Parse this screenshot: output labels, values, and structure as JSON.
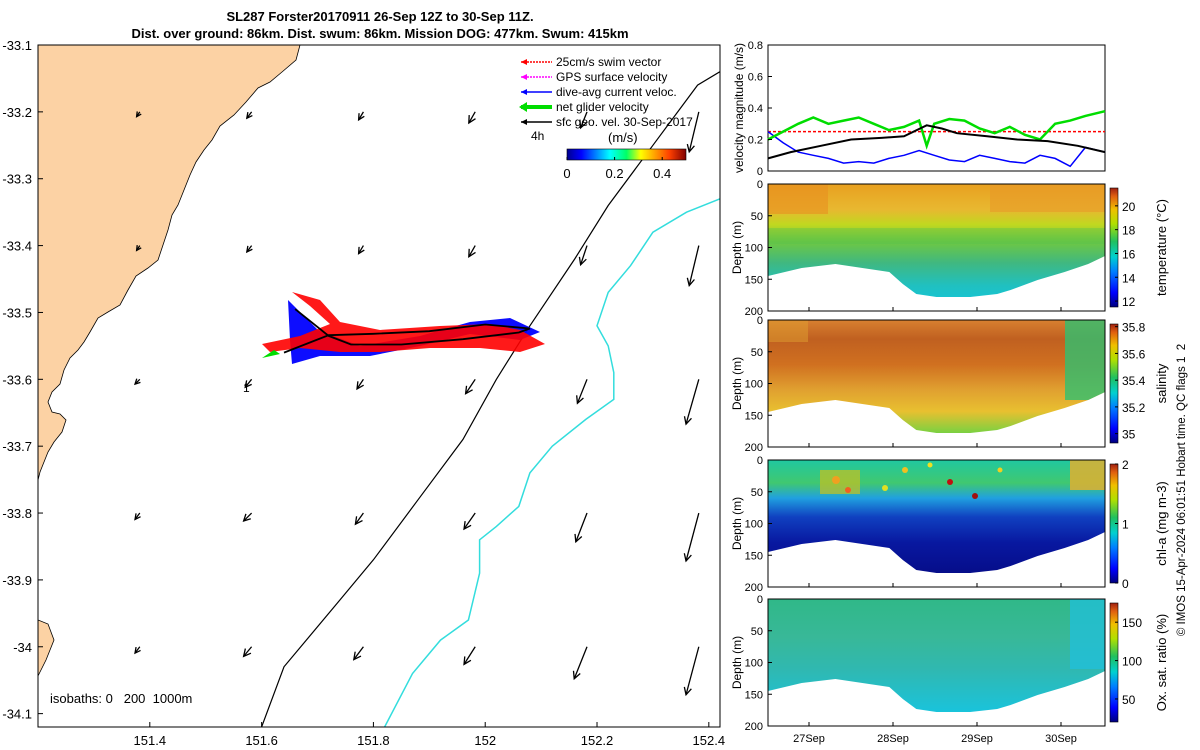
{
  "title": {
    "line1": "SL287 Forster20170911 26-Sep 12Z to 30-Sep 11Z.",
    "line2": "Dist. over ground: 86km. Dist. swum: 86km. Mission DOG: 477km. Swum: 415km"
  },
  "colors": {
    "land": "#FCD2A4",
    "swim_vector": "#FF0000",
    "gps_velocity": "#FF00FF",
    "current_vector": "#0000FF",
    "net_velocity": "#00DD00",
    "geo_velocity": "#000000",
    "isobath_200": "#000000",
    "isobath_1000": "#33DDDD"
  },
  "chart_data": [
    {
      "type": "map",
      "name": "glider-track-map",
      "xlim": [
        151.2,
        152.42
      ],
      "ylim": [
        -34.12,
        -33.1
      ],
      "x_ticks": [
        151.4,
        151.6,
        151.8,
        152,
        152.2,
        152.4
      ],
      "x_tick_labels": [
        "151.4",
        "151.6",
        "151.8",
        "152",
        "152.2",
        "152.4"
      ],
      "y_ticks": [
        -33.1,
        -33.2,
        -33.3,
        -33.4,
        -33.5,
        -33.6,
        -33.7,
        -33.8,
        -33.9,
        -34,
        -34.1
      ],
      "y_tick_labels": [
        "-33.1",
        "-33.2",
        "-33.3",
        "-33.4",
        "-33.5",
        "-33.6",
        "-33.7",
        "-33.8",
        "-33.9",
        "-34",
        "-34.1"
      ],
      "legend": {
        "position": "top-right",
        "entries": [
          {
            "label": "25cm/s swim vector",
            "color": "#FF0000"
          },
          {
            "label": "GPS surface velocity",
            "color": "#FF00FF"
          },
          {
            "label": "dive-avg current veloc.",
            "color": "#0000FF"
          },
          {
            "label": "net glider velocity",
            "color": "#00DD00"
          },
          {
            "label": "sfc geo. vel. 30-Sep-2017",
            "color": "#000000"
          }
        ],
        "subtitle_left": "4h",
        "colorbar_unit": "(m/s)",
        "colorbar_ticks": [
          0,
          0.2,
          0.4
        ],
        "colorbar_range": [
          0,
          0.5
        ]
      },
      "isobaths_label": "isobaths: 0   200  1000m",
      "marker_label": "1",
      "track": [
        {
          "lon": 151.64,
          "lat": -33.56
        },
        {
          "lon": 151.72,
          "lat": -33.534
        },
        {
          "lon": 151.8,
          "lat": -33.532
        },
        {
          "lon": 151.9,
          "lat": -33.528
        },
        {
          "lon": 152.0,
          "lat": -33.518
        },
        {
          "lon": 152.08,
          "lat": -33.524
        },
        {
          "lon": 152.06,
          "lat": -33.53
        },
        {
          "lon": 151.96,
          "lat": -33.54
        },
        {
          "lon": 151.85,
          "lat": -33.548
        },
        {
          "lon": 151.76,
          "lat": -33.548
        },
        {
          "lon": 151.72,
          "lat": -33.535
        },
        {
          "lon": 151.66,
          "lat": -33.495
        }
      ],
      "isobath_200": [
        {
          "lon": 151.6,
          "lat": -34.12
        },
        {
          "lon": 151.64,
          "lat": -34.03
        },
        {
          "lon": 151.74,
          "lat": -33.93
        },
        {
          "lon": 151.8,
          "lat": -33.87
        },
        {
          "lon": 151.88,
          "lat": -33.78
        },
        {
          "lon": 151.96,
          "lat": -33.69
        },
        {
          "lon": 152.02,
          "lat": -33.6
        },
        {
          "lon": 152.08,
          "lat": -33.52
        },
        {
          "lon": 152.16,
          "lat": -33.42
        },
        {
          "lon": 152.22,
          "lat": -33.34
        },
        {
          "lon": 152.3,
          "lat": -33.25
        },
        {
          "lon": 152.38,
          "lat": -33.16
        },
        {
          "lon": 152.42,
          "lat": -33.14
        }
      ],
      "isobath_1000": [
        {
          "lon": 151.82,
          "lat": -34.12
        },
        {
          "lon": 151.87,
          "lat": -34.04
        },
        {
          "lon": 151.92,
          "lat": -33.99
        },
        {
          "lon": 151.97,
          "lat": -33.96
        },
        {
          "lon": 151.99,
          "lat": -33.89
        },
        {
          "lon": 151.99,
          "lat": -33.84
        },
        {
          "lon": 152.02,
          "lat": -33.82
        },
        {
          "lon": 152.06,
          "lat": -33.79
        },
        {
          "lon": 152.08,
          "lat": -33.74
        },
        {
          "lon": 152.12,
          "lat": -33.7
        },
        {
          "lon": 152.18,
          "lat": -33.66
        },
        {
          "lon": 152.23,
          "lat": -33.63
        },
        {
          "lon": 152.23,
          "lat": -33.59
        },
        {
          "lon": 152.22,
          "lat": -33.55
        },
        {
          "lon": 152.2,
          "lat": -33.52
        },
        {
          "lon": 152.22,
          "lat": -33.47
        },
        {
          "lon": 152.26,
          "lat": -33.43
        },
        {
          "lon": 152.3,
          "lat": -33.38
        },
        {
          "lon": 152.36,
          "lat": -33.35
        },
        {
          "lon": 152.42,
          "lat": -33.33
        }
      ],
      "geo_vectors": {
        "lons": [
          151.4,
          151.6,
          151.8,
          152.0,
          152.2,
          152.4
        ],
        "lats": [
          -33.2,
          -33.4,
          -33.6,
          -33.8,
          -34.0
        ],
        "u": [
          [
            -0.02,
            -0.03,
            -0.03,
            -0.04,
            -0.04,
            -0.06
          ],
          [
            -0.02,
            -0.03,
            -0.03,
            -0.04,
            -0.04,
            -0.06
          ],
          [
            -0.03,
            -0.04,
            -0.04,
            -0.06,
            -0.06,
            -0.08
          ],
          [
            -0.03,
            -0.05,
            -0.05,
            -0.07,
            -0.07,
            -0.08
          ],
          [
            -0.03,
            -0.05,
            -0.06,
            -0.07,
            -0.08,
            -0.08
          ]
        ],
        "v": [
          [
            -0.03,
            -0.04,
            -0.05,
            -0.07,
            -0.1,
            -0.25
          ],
          [
            -0.03,
            -0.04,
            -0.05,
            -0.07,
            -0.12,
            -0.25
          ],
          [
            -0.03,
            -0.05,
            -0.06,
            -0.09,
            -0.15,
            -0.28
          ],
          [
            -0.04,
            -0.05,
            -0.07,
            -0.1,
            -0.18,
            -0.3
          ],
          [
            -0.04,
            -0.06,
            -0.08,
            -0.11,
            -0.2,
            -0.3
          ]
        ]
      }
    },
    {
      "type": "line",
      "name": "velocity-magnitude",
      "ylabel": "velocity magnitude (m/s)",
      "ylim": [
        0,
        0.8
      ],
      "y_ticks": [
        0,
        0.2,
        0.4,
        0.6,
        0.8
      ],
      "y_tick_labels": [
        "0",
        "0.2",
        "0.4",
        "0.6",
        "0.8"
      ],
      "xlim": [
        26.5,
        30.96
      ],
      "series": [
        {
          "color": "#FF0000",
          "x": [
            26.5,
            30.96
          ],
          "y": [
            0.25,
            0.25
          ]
        },
        {
          "color": "#0000FF",
          "x": [
            26.5,
            26.7,
            26.9,
            27.1,
            27.3,
            27.5,
            27.7,
            27.9,
            28.1,
            28.3,
            28.5,
            28.7,
            28.9,
            29.1,
            29.3,
            29.5,
            29.7,
            29.9,
            30.1,
            30.3,
            30.5,
            30.7,
            30.96
          ],
          "y": [
            0.25,
            0.18,
            0.12,
            0.1,
            0.08,
            0.05,
            0.06,
            0.05,
            0.08,
            0.1,
            0.13,
            0.1,
            0.07,
            0.06,
            0.1,
            0.08,
            0.06,
            0.05,
            0.1,
            0.08,
            0.03,
            0.15,
            0.12
          ]
        },
        {
          "color": "#00DD00",
          "x": [
            26.5,
            26.7,
            26.9,
            27.1,
            27.3,
            27.5,
            27.7,
            27.9,
            28.1,
            28.3,
            28.5,
            28.6,
            28.7,
            28.9,
            29.1,
            29.3,
            29.5,
            29.7,
            29.9,
            30.1,
            30.3,
            30.5,
            30.7,
            30.96
          ],
          "y": [
            0.2,
            0.25,
            0.3,
            0.34,
            0.3,
            0.32,
            0.34,
            0.3,
            0.26,
            0.28,
            0.32,
            0.16,
            0.3,
            0.33,
            0.32,
            0.27,
            0.24,
            0.28,
            0.23,
            0.2,
            0.3,
            0.32,
            0.35,
            0.38
          ]
        },
        {
          "color": "#000000",
          "x": [
            26.5,
            26.8,
            27.2,
            27.6,
            28.0,
            28.3,
            28.6,
            28.8,
            29.0,
            29.4,
            29.8,
            30.2,
            30.6,
            30.96
          ],
          "y": [
            0.08,
            0.12,
            0.16,
            0.2,
            0.21,
            0.22,
            0.29,
            0.27,
            0.24,
            0.22,
            0.2,
            0.19,
            0.16,
            0.12
          ]
        }
      ]
    },
    {
      "type": "heatmap",
      "name": "temperature-section",
      "ylabel": "Depth (m)",
      "ylim": [
        200,
        0
      ],
      "y_ticks": [
        0,
        50,
        100,
        150,
        200
      ],
      "colorbar_label": "temperature (°C)",
      "colorbar_ticks": [
        12,
        14,
        16,
        18,
        20
      ],
      "colorbar_range": [
        11.5,
        21.5
      ]
    },
    {
      "type": "heatmap",
      "name": "salinity-section",
      "ylabel": "Depth (m)",
      "ylim": [
        200,
        0
      ],
      "y_ticks": [
        0,
        50,
        100,
        150,
        200
      ],
      "colorbar_label": "salinity",
      "colorbar_ticks": [
        35,
        35.2,
        35.4,
        35.6,
        35.8
      ],
      "colorbar_range": [
        34.93,
        35.82
      ]
    },
    {
      "type": "heatmap",
      "name": "chla-section",
      "ylabel": "Depth (m)",
      "ylim": [
        200,
        0
      ],
      "y_ticks": [
        0,
        50,
        100,
        150,
        200
      ],
      "colorbar_label": "chl-a (mg m-3)",
      "colorbar_ticks": [
        0,
        1,
        2
      ],
      "colorbar_range": [
        0,
        2
      ]
    },
    {
      "type": "heatmap",
      "name": "oxygen-section",
      "ylabel": "Depth (m)",
      "ylim": [
        200,
        0
      ],
      "y_ticks": [
        0,
        50,
        100,
        150,
        200
      ],
      "colorbar_label": "Ox. sat. ratio (%)",
      "colorbar_ticks": [
        50,
        100,
        150
      ],
      "colorbar_range": [
        20,
        175
      ],
      "x_tick_labels": [
        "27Sep",
        "28Sep",
        "29Sep",
        "30Sep"
      ]
    }
  ],
  "copyright": "© IMOS 15-Apr-2024 06:01:51 Hobart time. QC flags 1  2"
}
